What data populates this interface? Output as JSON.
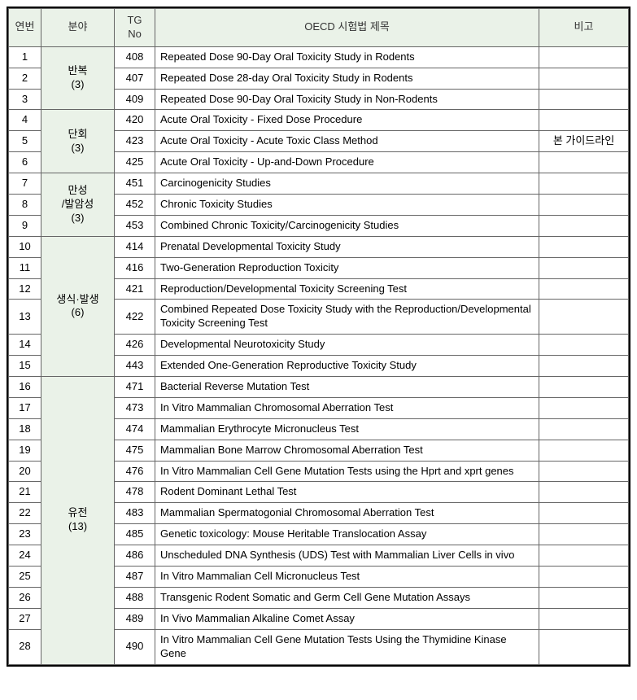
{
  "colors": {
    "header_bg": "#eaf2e8",
    "category_bg": "#eaf2e8",
    "border": "#666666",
    "outer_border": "#000000",
    "text": "#333333",
    "bg": "#ffffff"
  },
  "headers": {
    "num": "연번",
    "category": "분야",
    "tg_no": "TG\nNo",
    "title": "OECD 시험법 제목",
    "note": "비고"
  },
  "categories": [
    {
      "label": "반복\n(3)",
      "rowspan": 3
    },
    {
      "label": "단회\n(3)",
      "rowspan": 3
    },
    {
      "label": "만성\n/발암성\n(3)",
      "rowspan": 3
    },
    {
      "label": "생식·발생\n(6)",
      "rowspan": 6
    },
    {
      "label": "유전\n(13)",
      "rowspan": 13
    }
  ],
  "rows": [
    {
      "num": "1",
      "tg": "408",
      "title": "Repeated Dose 90-Day Oral Toxicity Study in Rodents",
      "note": "",
      "cat": 0
    },
    {
      "num": "2",
      "tg": "407",
      "title": "Repeated Dose 28-day Oral Toxicity Study in Rodents",
      "note": ""
    },
    {
      "num": "3",
      "tg": "409",
      "title": "Repeated Dose 90-Day Oral Toxicity Study in Non-Rodents",
      "note": ""
    },
    {
      "num": "4",
      "tg": "420",
      "title": "Acute Oral Toxicity - Fixed Dose Procedure",
      "note": "",
      "cat": 1
    },
    {
      "num": "5",
      "tg": "423",
      "title": "Acute Oral Toxicity - Acute Toxic Class Method",
      "note": "본 가이드라인"
    },
    {
      "num": "6",
      "tg": "425",
      "title": "Acute Oral Toxicity - Up-and-Down Procedure",
      "note": ""
    },
    {
      "num": "7",
      "tg": "451",
      "title": "Carcinogenicity Studies",
      "note": "",
      "cat": 2
    },
    {
      "num": "8",
      "tg": "452",
      "title": "Chronic Toxicity Studies",
      "note": ""
    },
    {
      "num": "9",
      "tg": "453",
      "title": "Combined Chronic Toxicity/Carcinogenicity Studies",
      "note": ""
    },
    {
      "num": "10",
      "tg": "414",
      "title": "Prenatal Developmental Toxicity Study",
      "note": "",
      "cat": 3
    },
    {
      "num": "11",
      "tg": "416",
      "title": "Two-Generation Reproduction Toxicity",
      "note": ""
    },
    {
      "num": "12",
      "tg": "421",
      "title": "Reproduction/Developmental Toxicity Screening Test",
      "note": ""
    },
    {
      "num": "13",
      "tg": "422",
      "title": "Combined Repeated Dose Toxicity Study with the Reproduction/Developmental Toxicity Screening Test",
      "note": ""
    },
    {
      "num": "14",
      "tg": "426",
      "title": "Developmental Neurotoxicity Study",
      "note": ""
    },
    {
      "num": "15",
      "tg": "443",
      "title": "Extended One-Generation Reproductive Toxicity Study",
      "note": ""
    },
    {
      "num": "16",
      "tg": "471",
      "title": "Bacterial Reverse Mutation Test",
      "note": "",
      "cat": 4
    },
    {
      "num": "17",
      "tg": "473",
      "title": "In Vitro Mammalian Chromosomal Aberration Test",
      "note": ""
    },
    {
      "num": "18",
      "tg": "474",
      "title": "Mammalian Erythrocyte Micronucleus Test",
      "note": ""
    },
    {
      "num": "19",
      "tg": "475",
      "title": "Mammalian Bone Marrow Chromosomal Aberration Test",
      "note": ""
    },
    {
      "num": "20",
      "tg": "476",
      "title": "In Vitro Mammalian Cell Gene Mutation Tests using the Hprt and xprt genes",
      "note": ""
    },
    {
      "num": "21",
      "tg": "478",
      "title": "Rodent Dominant Lethal Test",
      "note": ""
    },
    {
      "num": "22",
      "tg": "483",
      "title": "Mammalian Spermatogonial Chromosomal Aberration Test",
      "note": ""
    },
    {
      "num": "23",
      "tg": "485",
      "title": "Genetic toxicology: Mouse Heritable Translocation Assay",
      "note": ""
    },
    {
      "num": "24",
      "tg": "486",
      "title": "Unscheduled DNA Synthesis (UDS) Test with Mammalian Liver Cells in vivo",
      "note": ""
    },
    {
      "num": "25",
      "tg": "487",
      "title": "In Vitro Mammalian Cell Micronucleus Test",
      "note": ""
    },
    {
      "num": "26",
      "tg": "488",
      "title": "Transgenic Rodent Somatic and Germ Cell Gene Mutation Assays",
      "note": ""
    },
    {
      "num": "27",
      "tg": "489",
      "title": "In Vivo Mammalian Alkaline Comet Assay",
      "note": ""
    },
    {
      "num": "28",
      "tg": "490",
      "title": "In Vitro Mammalian Cell Gene Mutation Tests Using the Thymidine Kinase Gene",
      "note": ""
    }
  ]
}
